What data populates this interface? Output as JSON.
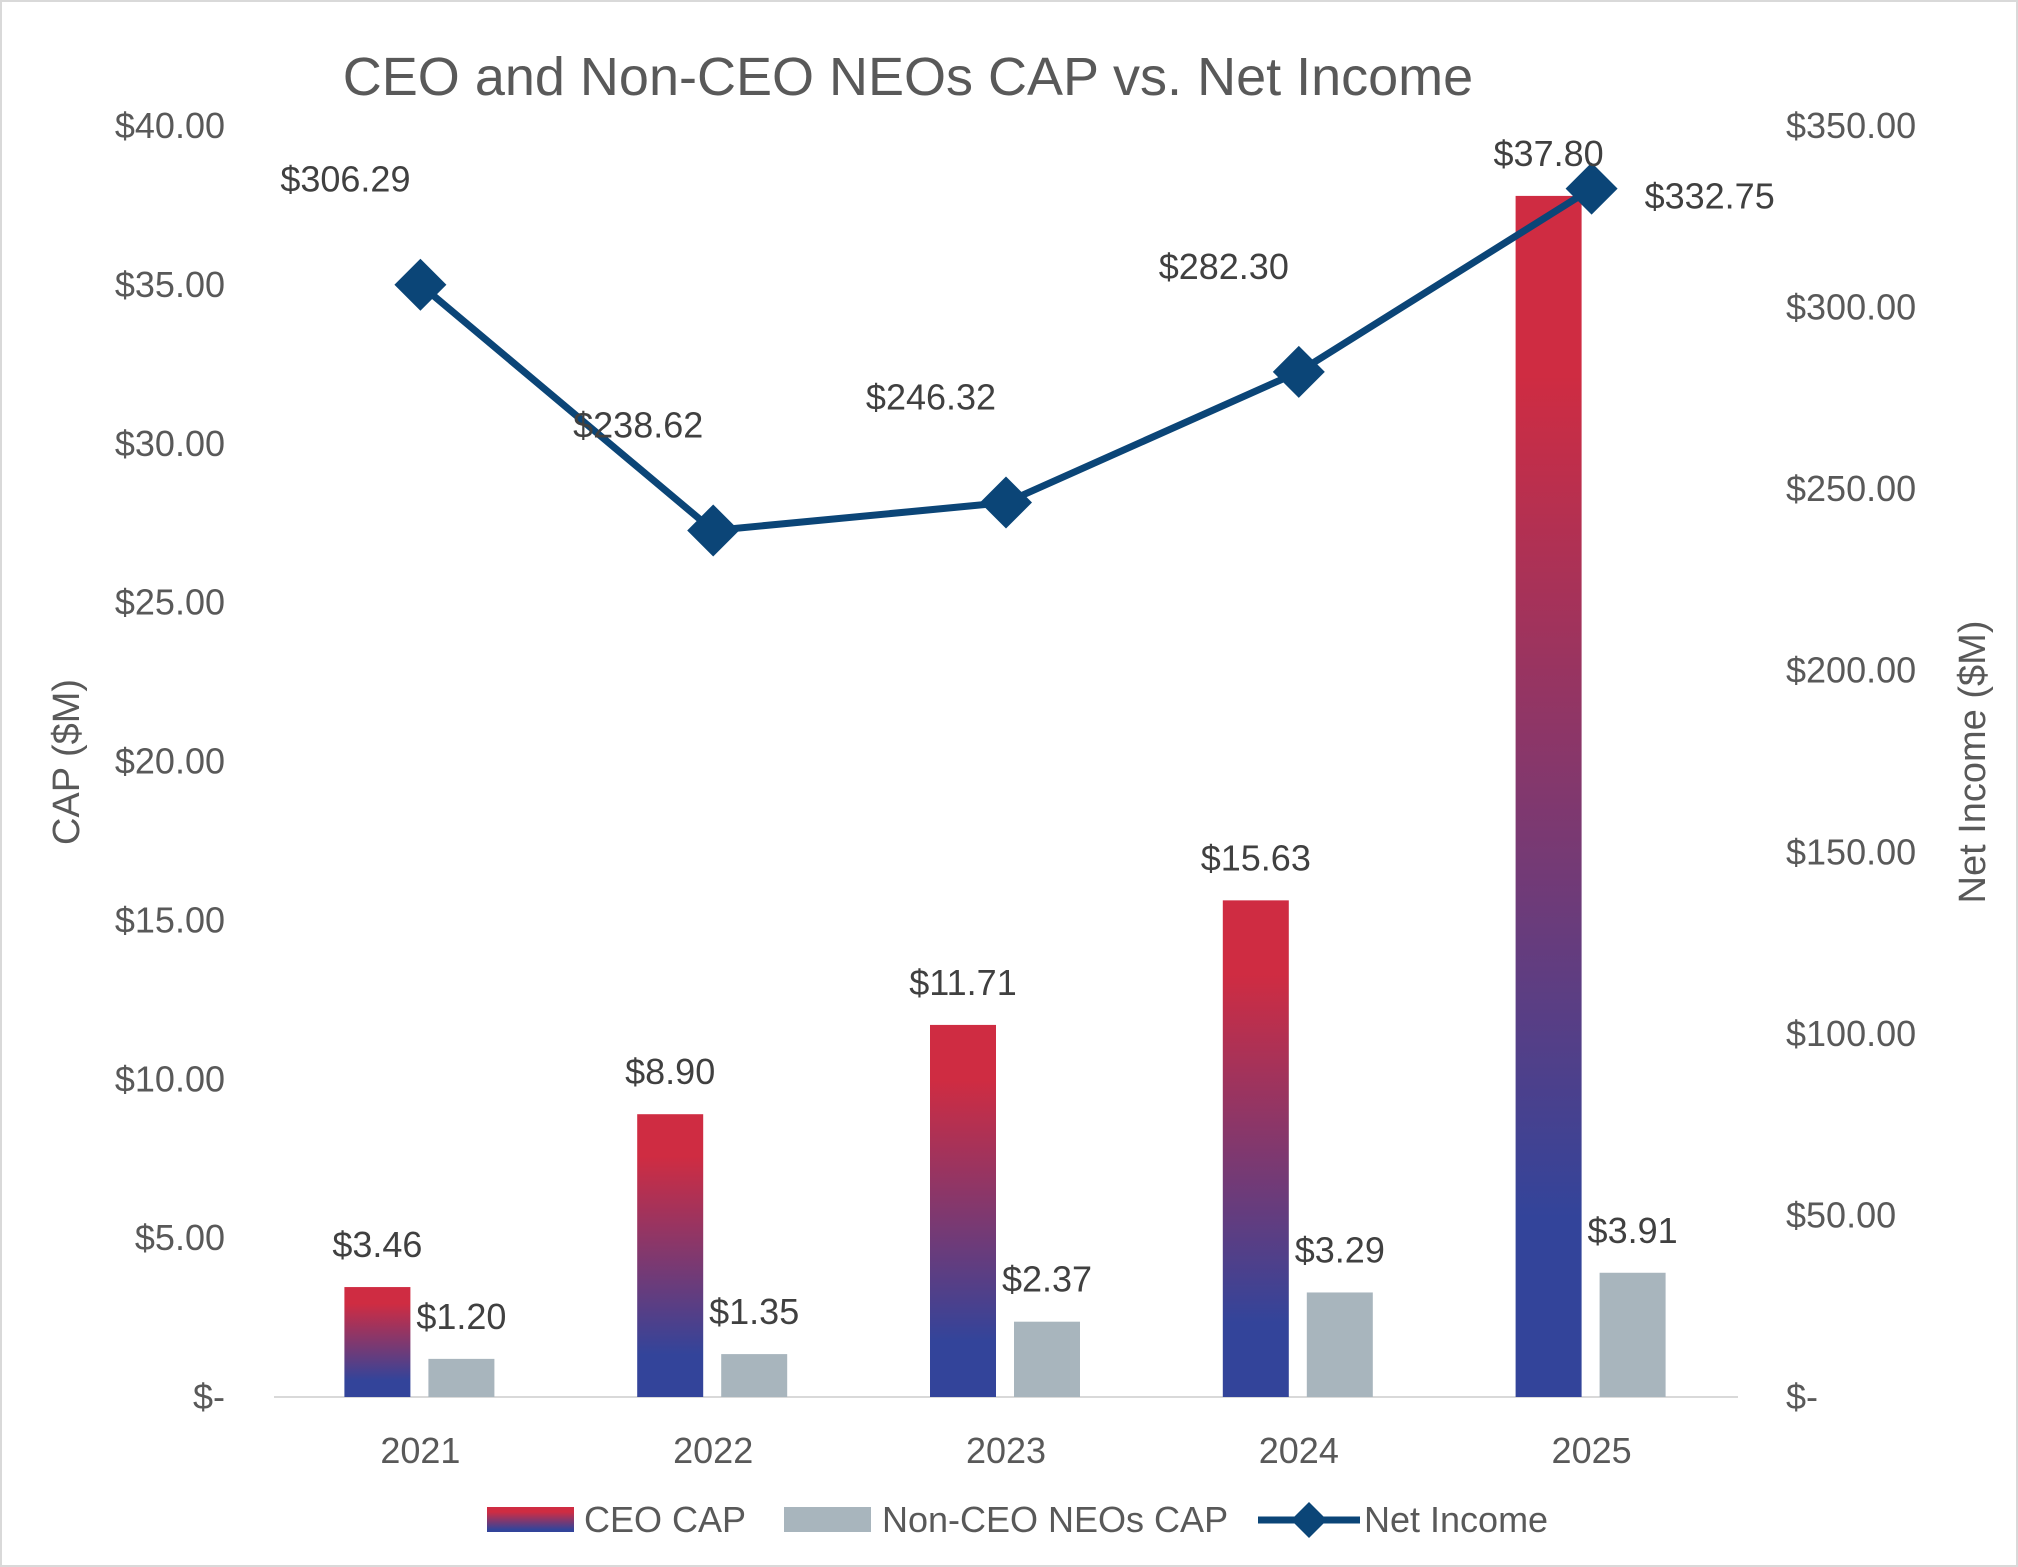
{
  "chart_data": {
    "type": "bar",
    "title": "CEO and Non-CEO NEOs CAP vs. Net Income",
    "categories": [
      "2021",
      "2022",
      "2023",
      "2024",
      "2025"
    ],
    "ylabel": "CAP ($M)",
    "y2label": "Net Income ($M)",
    "ylim": [
      0,
      40
    ],
    "y2lim": [
      0,
      350
    ],
    "y_ticks": [
      "$-",
      "$5.00",
      "$10.00",
      "$15.00",
      "$20.00",
      "$25.00",
      "$30.00",
      "$35.00",
      "$40.00"
    ],
    "y2_ticks": [
      "$-",
      "$50.00",
      "$100.00",
      "$150.00",
      "$200.00",
      "$250.00",
      "$300.00",
      "$350.00"
    ],
    "series": [
      {
        "name": "CEO CAP",
        "type": "bar",
        "axis": "left",
        "values": [
          3.46,
          8.9,
          11.71,
          15.63,
          37.8
        ],
        "labels": [
          "$3.46",
          "$8.90",
          "$11.71",
          "$15.63",
          "$37.80"
        ],
        "color_top": "#cf2c42",
        "color_bottom": "#33449a"
      },
      {
        "name": "Non-CEO NEOs CAP",
        "type": "bar",
        "axis": "left",
        "values": [
          1.2,
          1.35,
          2.37,
          3.29,
          3.91
        ],
        "labels": [
          "$1.20",
          "$1.35",
          "$2.37",
          "$3.29",
          "$3.91"
        ],
        "color": "#a8b5bd"
      },
      {
        "name": "Net Income",
        "type": "line",
        "axis": "right",
        "marker": "diamond",
        "values": [
          306.29,
          238.62,
          246.32,
          282.3,
          332.75
        ],
        "labels": [
          "$306.29",
          "$238.62",
          "$246.32",
          "$282.30",
          "$332.75"
        ],
        "color": "#0b4577"
      }
    ],
    "grid": false,
    "legend": "bottom"
  }
}
